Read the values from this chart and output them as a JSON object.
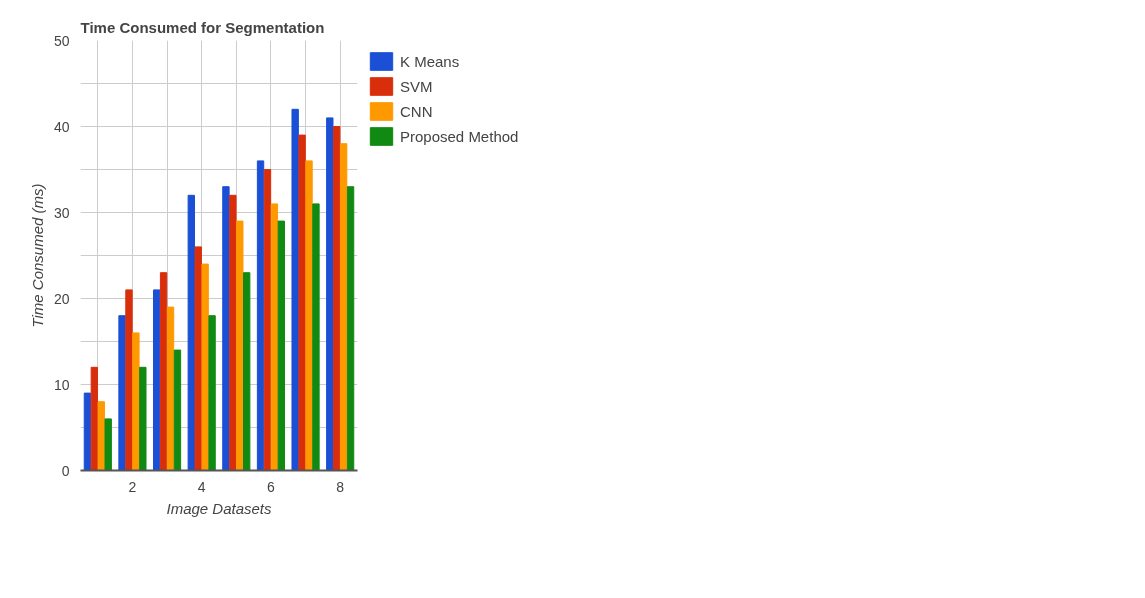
{
  "chart_data": {
    "type": "bar",
    "title": "Time Consumed for Segmentation",
    "xlabel": "Image Datasets",
    "ylabel": "Time Consumed (ms)",
    "x": [
      1,
      2,
      3,
      4,
      5,
      6,
      7,
      8
    ],
    "series": [
      {
        "name": "K Means",
        "color": "#1a4fd6",
        "values": [
          9,
          18,
          21,
          32,
          33,
          36,
          42,
          41
        ]
      },
      {
        "name": "SVM",
        "color": "#d92e0c",
        "values": [
          12,
          21,
          23,
          26,
          32,
          35,
          39,
          40
        ]
      },
      {
        "name": "CNN",
        "color": "#ff9900",
        "values": [
          8,
          16,
          19,
          24,
          29,
          31,
          36,
          38
        ]
      },
      {
        "name": "Proposed Method",
        "color": "#108a12",
        "values": [
          6,
          12,
          14,
          18,
          23,
          29,
          31,
          33
        ]
      }
    ],
    "xlim": [
      0.5,
      8.5
    ],
    "ylim": [
      0,
      50
    ],
    "xticks": [
      {
        "value": 1,
        "label": null
      },
      2,
      {
        "value": 3,
        "label": null
      },
      4,
      {
        "value": 5,
        "label": null
      },
      6,
      {
        "value": 7,
        "label": null
      },
      8
    ],
    "yticks": [
      0,
      {
        "value": 5,
        "label": null
      },
      10,
      {
        "value": 15,
        "label": null
      },
      20,
      {
        "value": 25,
        "label": null
      },
      30,
      {
        "value": 35,
        "label": null
      },
      40,
      {
        "value": 45,
        "label": null
      },
      50
    ],
    "grid": true,
    "legend": "top right"
  }
}
